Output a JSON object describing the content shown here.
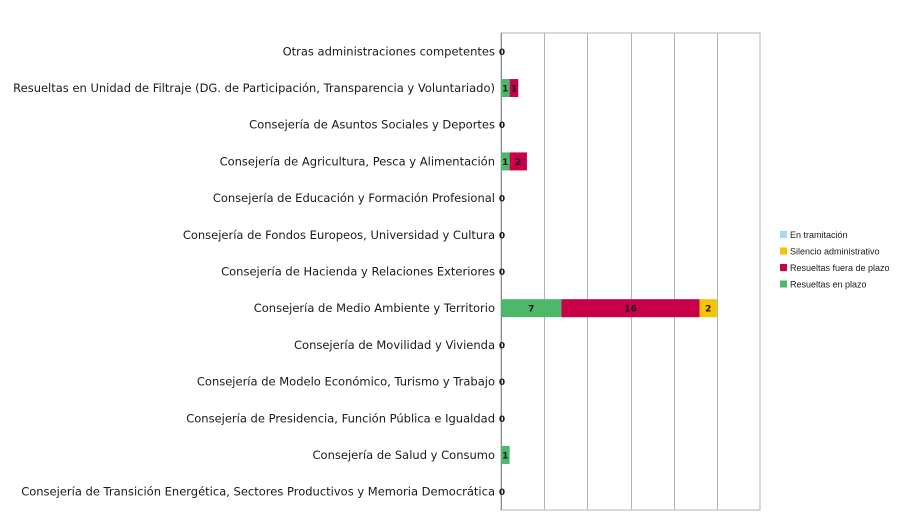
{
  "chart_data": {
    "type": "bar",
    "orientation": "horizontal",
    "stacked": true,
    "categories": [
      "Otras administraciones competentes",
      "Resueltas en Unidad de Filtraje (DG. de Participación, Transparencia y Voluntariado)",
      "Consejería de Asuntos Sociales y Deportes",
      "Consejería de Agricultura, Pesca y  Alimentación",
      "Consejería de Educación y Formación Profesional",
      "Consejería de Fondos Europeos, Universidad y Cultura",
      "Consejería de Hacienda y Relaciones Exteriores",
      "Consejería de Medio Ambiente y Territorio",
      "Consejería de Movilidad y Vivienda",
      "Consejería de Modelo Económico, Turismo y Trabajo",
      "Consejería de Presidencia, Función Pública e Igualdad",
      "Consejería de Salud y Consumo",
      "Consejería de Transición Energética, Sectores Productivos y Memoria Democrática"
    ],
    "series": [
      {
        "name": "Resueltas en plazo",
        "color": "#4db86a",
        "values": [
          0,
          1,
          0,
          1,
          0,
          0,
          0,
          7,
          0,
          0,
          0,
          1,
          0
        ]
      },
      {
        "name": "Resueltas fuera de plazo",
        "color": "#c8004a",
        "values": [
          0,
          1,
          0,
          2,
          0,
          0,
          0,
          16,
          0,
          0,
          0,
          0,
          0
        ]
      },
      {
        "name": "Silencio administrativo",
        "color": "#f5c400",
        "values": [
          0,
          0,
          0,
          0,
          0,
          0,
          0,
          2,
          0,
          0,
          0,
          0,
          0
        ]
      },
      {
        "name": "En tramitación",
        "color": "#a8d8f0",
        "values": [
          0,
          0,
          0,
          0,
          0,
          0,
          0,
          0,
          0,
          0,
          0,
          0,
          0
        ]
      }
    ],
    "bar_labels": [
      [
        "0"
      ],
      [
        "1",
        "1"
      ],
      [
        "0"
      ],
      [
        "1",
        "2"
      ],
      [
        "0"
      ],
      [
        "0"
      ],
      [
        "0"
      ],
      [
        "7",
        "16",
        "2"
      ],
      [
        "0"
      ],
      [
        "0"
      ],
      [
        "0"
      ],
      [
        "1"
      ],
      [
        "0"
      ]
    ],
    "legend": {
      "position": "right",
      "items": [
        "En tramitación",
        "Silencio administrativo",
        "Resueltas fuera de plazo",
        "Resueltas en plazo"
      ]
    },
    "xlim": [
      0,
      30
    ],
    "grid": true,
    "title": "",
    "xlabel": "",
    "ylabel": ""
  }
}
